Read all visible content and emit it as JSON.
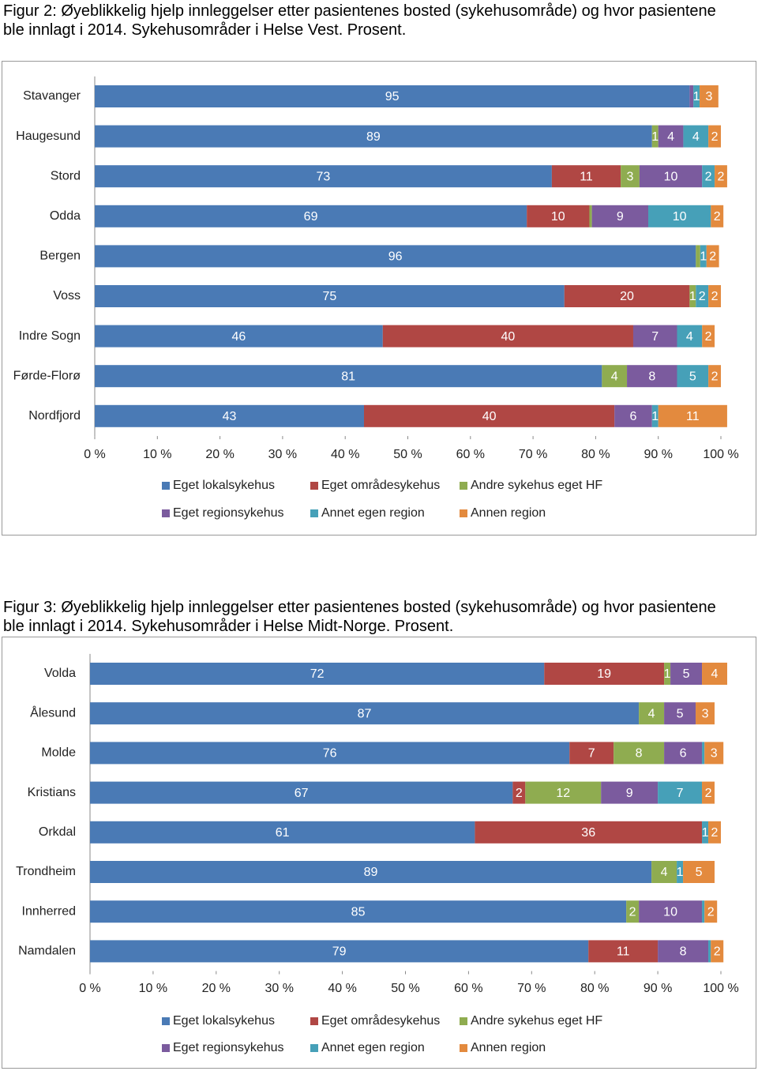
{
  "chart_data": [
    {
      "type": "stacked-bar-horizontal",
      "title": "Figur 2: Øyeblikkelig hjelp innleggelser etter pasientenes bosted (sykehusområde) og hvor pasientene ble innlagt i 2014. Sykehusområder i Helse Vest. Prosent.",
      "categories": [
        "Stavanger",
        "Haugesund",
        "Stord",
        "Odda",
        "Bergen",
        "Voss",
        "Indre Sogn",
        "Førde-Florø",
        "Nordfjord"
      ],
      "series": [
        {
          "name": "Eget lokalsykehus",
          "color": "#4a7ab5",
          "values": [
            95,
            89,
            73,
            69,
            96,
            75,
            46,
            81,
            43
          ]
        },
        {
          "name": "Eget områdesykehus",
          "color": "#b04744",
          "values": [
            0,
            0,
            11,
            10,
            0,
            20,
            40,
            0,
            40
          ]
        },
        {
          "name": "Andre sykehus eget HF",
          "color": "#8fac50",
          "values": [
            0,
            1,
            3,
            0.4,
            0.7,
            1,
            0,
            4,
            0
          ]
        },
        {
          "name": "Eget regionsykehus",
          "color": "#7b5b9e",
          "values": [
            0.6,
            4,
            10,
            9,
            0,
            0,
            7,
            8,
            6
          ]
        },
        {
          "name": "Annet egen region",
          "color": "#46a0b8",
          "values": [
            1,
            4,
            2,
            10,
            1,
            2,
            4,
            5,
            1
          ]
        },
        {
          "name": "Annen region",
          "color": "#e38a3e",
          "values": [
            3,
            2,
            2,
            2,
            2,
            2,
            2,
            2,
            11
          ]
        }
      ],
      "xlim": [
        0,
        100
      ],
      "xticks": [
        {
          "value": 0,
          "label": "0 %"
        },
        {
          "value": 10,
          "label": "10 %"
        },
        {
          "value": 20,
          "label": "20 %"
        },
        {
          "value": 30,
          "label": "30 %"
        },
        {
          "value": 40,
          "label": "40 %"
        },
        {
          "value": 50,
          "label": "50 %"
        },
        {
          "value": 60,
          "label": "60 %"
        },
        {
          "value": 70,
          "label": "70 %"
        },
        {
          "value": 80,
          "label": "80 %"
        },
        {
          "value": 90,
          "label": "90 %"
        },
        {
          "value": 100,
          "label": "100 %"
        }
      ],
      "legend": "bottom"
    },
    {
      "type": "stacked-bar-horizontal",
      "title": "Figur 3: Øyeblikkelig hjelp innleggelser etter pasientenes bosted (sykehusområde) og hvor pasientene ble innlagt i 2014. Sykehusområder i Helse Midt-Norge. Prosent.",
      "categories": [
        "Volda",
        "Ålesund",
        "Molde",
        "Kristians",
        "Orkdal",
        "Trondheim",
        "Innherred",
        "Namdalen"
      ],
      "series": [
        {
          "name": "Eget lokalsykehus",
          "color": "#4a7ab5",
          "values": [
            72,
            87,
            76,
            67,
            61,
            89,
            85,
            79
          ]
        },
        {
          "name": "Eget områdesykehus",
          "color": "#b04744",
          "values": [
            19,
            0,
            7,
            2,
            36,
            0,
            0,
            11
          ]
        },
        {
          "name": "Andre sykehus eget HF",
          "color": "#8fac50",
          "values": [
            1,
            4,
            8,
            12,
            0,
            4,
            2,
            0
          ]
        },
        {
          "name": "Eget regionsykehus",
          "color": "#7b5b9e",
          "values": [
            5,
            5,
            6,
            9,
            0,
            0,
            10,
            8
          ]
        },
        {
          "name": "Annet egen region",
          "color": "#46a0b8",
          "values": [
            0,
            0,
            0.4,
            7,
            1,
            1,
            0.4,
            0.4
          ]
        },
        {
          "name": "Annen region",
          "color": "#e38a3e",
          "values": [
            4,
            3,
            3,
            2,
            2,
            5,
            2,
            2
          ]
        }
      ],
      "xlim": [
        0,
        100
      ],
      "xticks": [
        {
          "value": 0,
          "label": "0 %"
        },
        {
          "value": 10,
          "label": "10 %"
        },
        {
          "value": 20,
          "label": "20 %"
        },
        {
          "value": 30,
          "label": "30 %"
        },
        {
          "value": 40,
          "label": "40 %"
        },
        {
          "value": 50,
          "label": "50 %"
        },
        {
          "value": 60,
          "label": "60 %"
        },
        {
          "value": 70,
          "label": "70 %"
        },
        {
          "value": 80,
          "label": "80 %"
        },
        {
          "value": 90,
          "label": "90 %"
        },
        {
          "value": 100,
          "label": "100 %"
        }
      ],
      "legend": "bottom"
    }
  ]
}
